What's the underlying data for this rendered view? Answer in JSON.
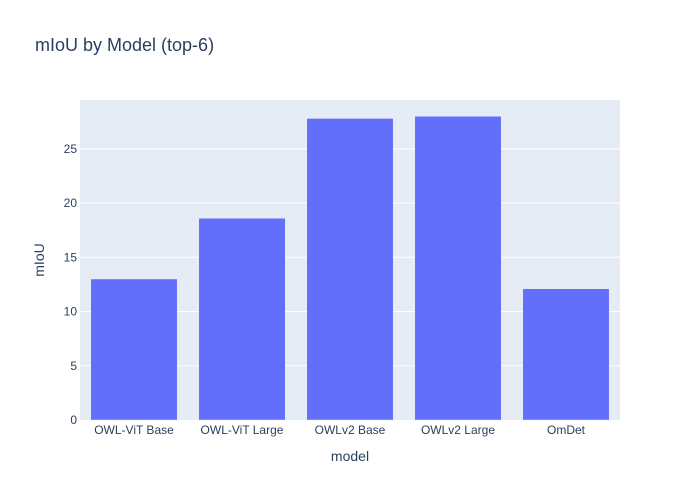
{
  "chart_data": {
    "type": "bar",
    "title": "mIoU by Model (top-6)",
    "xlabel": "model",
    "ylabel": "mIoU",
    "categories": [
      "OWL-ViT Base",
      "OWL-ViT Large",
      "OWLv2 Base",
      "OWLv2 Large",
      "OmDet"
    ],
    "values": [
      13.0,
      18.6,
      27.8,
      28.0,
      12.1
    ],
    "ylim": [
      0,
      29.5
    ],
    "yticks": [
      0,
      5,
      10,
      15,
      20,
      25
    ],
    "grid": true,
    "legend": "none",
    "colors": {
      "bar": "#636efa",
      "plot_bg": "#e5ecf6",
      "grid": "#ffffff",
      "text": "#2a3f5f"
    }
  }
}
